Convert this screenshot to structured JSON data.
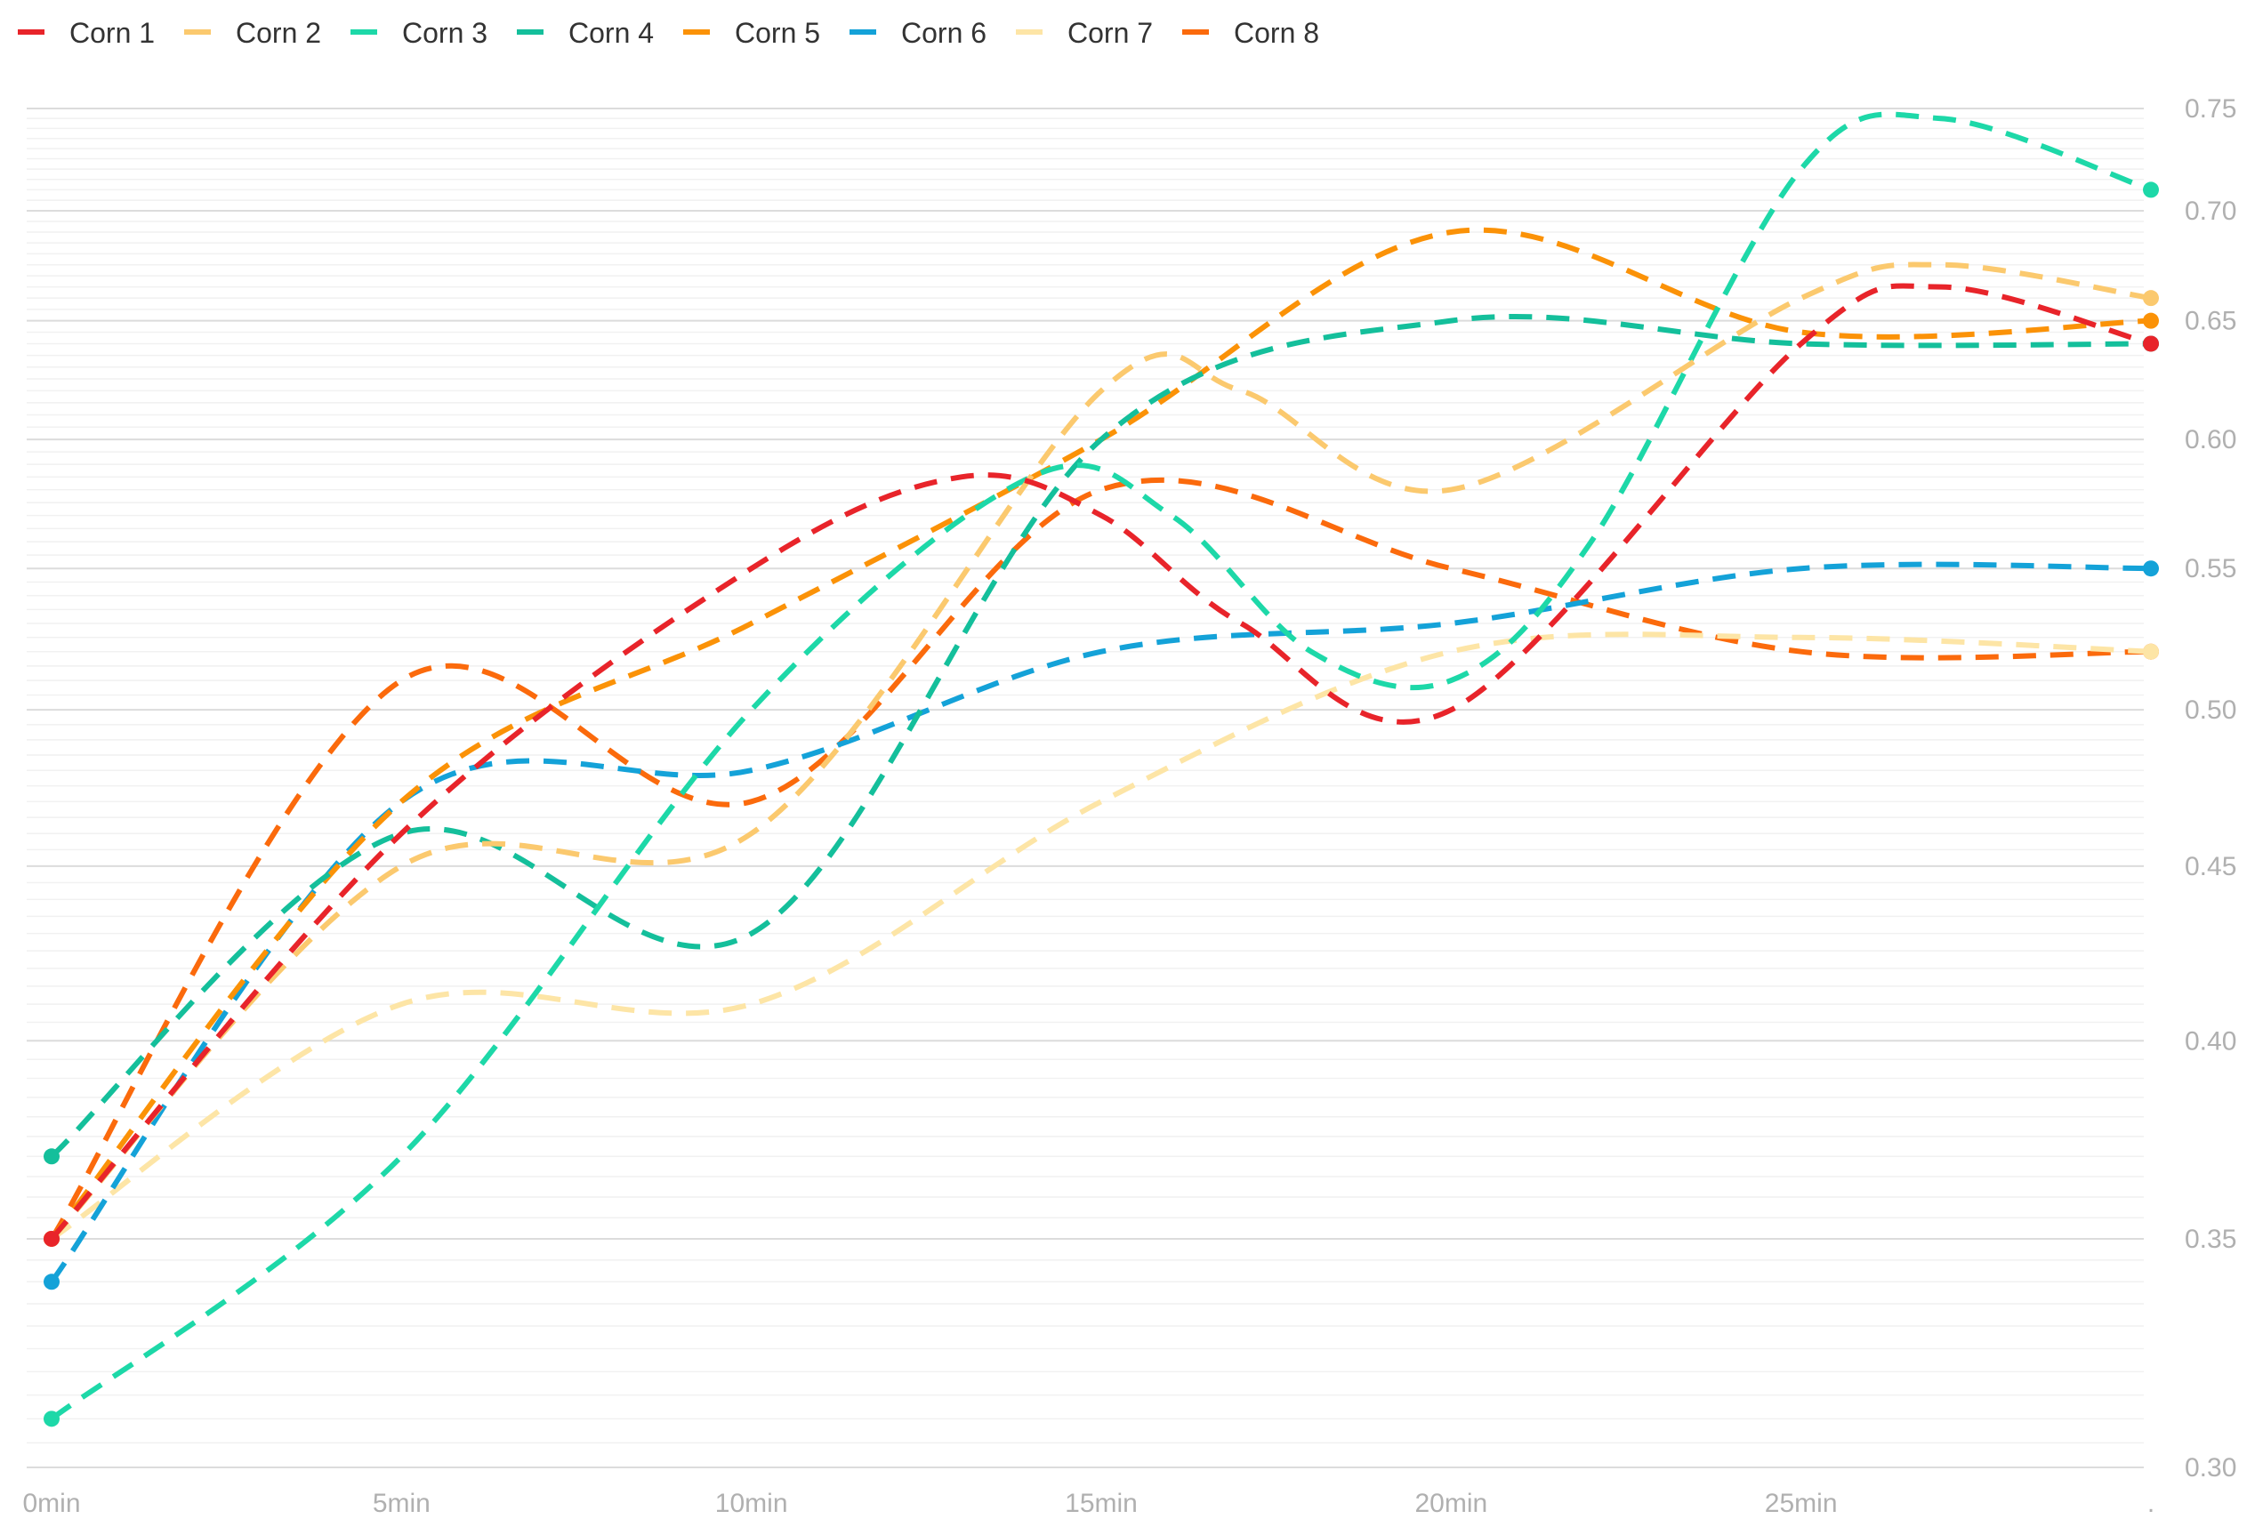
{
  "chart_data": {
    "type": "line",
    "title": "",
    "xlabel": "",
    "ylabel": "",
    "y_scale": "log",
    "ylim": [
      0.3,
      0.75
    ],
    "y_ticks": [
      0.3,
      0.35,
      0.4,
      0.45,
      0.5,
      0.55,
      0.6,
      0.65,
      0.7,
      0.75
    ],
    "y_tick_labels": [
      "0.30",
      "0.35",
      "0.40",
      "0.45",
      "0.50",
      "0.55",
      "0.60",
      "0.65",
      "0.70",
      "0.75"
    ],
    "y_axis_side": "right",
    "x_ticks": [
      0,
      5,
      10,
      15,
      20,
      25,
      30
    ],
    "x_tick_labels": [
      "0min",
      "5min",
      "10min",
      "15min",
      "20min",
      "25min",
      "."
    ],
    "legend_position": "top-left",
    "line_style": "dashed-smooth",
    "grid": true,
    "series": [
      {
        "name": "Corn 1",
        "color": "#e8242a",
        "x": [
          0,
          5,
          10,
          13,
          15,
          17,
          20,
          25,
          27,
          30
        ],
        "values": [
          0.35,
          0.46,
          0.55,
          0.585,
          0.57,
          0.53,
          0.5,
          0.64,
          0.665,
          0.64
        ]
      },
      {
        "name": "Corn 2",
        "color": "#fbc96e",
        "x": [
          0,
          5,
          10,
          15,
          17,
          20,
          25,
          27,
          30
        ],
        "values": [
          0.35,
          0.45,
          0.46,
          0.62,
          0.62,
          0.58,
          0.66,
          0.675,
          0.66
        ]
      },
      {
        "name": "Corn 3",
        "color": "#1dd8a8",
        "x": [
          0,
          5,
          10,
          14,
          16,
          18,
          20,
          22,
          25,
          27,
          30
        ],
        "values": [
          0.31,
          0.37,
          0.5,
          0.585,
          0.57,
          0.52,
          0.51,
          0.56,
          0.72,
          0.745,
          0.71
        ]
      },
      {
        "name": "Corn 4",
        "color": "#14bf9b",
        "x": [
          0,
          5,
          10,
          15,
          20,
          25,
          30
        ],
        "values": [
          0.37,
          0.46,
          0.43,
          0.6,
          0.65,
          0.64,
          0.64
        ]
      },
      {
        "name": "Corn 5",
        "color": "#fb9207",
        "x": [
          0,
          5,
          10,
          15,
          20,
          25,
          30
        ],
        "values": [
          0.35,
          0.47,
          0.53,
          0.6,
          0.69,
          0.645,
          0.65
        ]
      },
      {
        "name": "Corn 6",
        "color": "#14a2d8",
        "x": [
          0,
          5,
          10,
          15,
          20,
          25,
          30
        ],
        "values": [
          0.34,
          0.47,
          0.48,
          0.52,
          0.53,
          0.55,
          0.55
        ]
      },
      {
        "name": "Corn 7",
        "color": "#fde5a6",
        "x": [
          0,
          5,
          10,
          15,
          20,
          25,
          30
        ],
        "values": [
          0.35,
          0.41,
          0.41,
          0.47,
          0.52,
          0.525,
          0.52
        ]
      },
      {
        "name": "Corn 8",
        "color": "#fb6a0c",
        "x": [
          0,
          5,
          10,
          15,
          20,
          25,
          30
        ],
        "values": [
          0.35,
          0.51,
          0.47,
          0.58,
          0.55,
          0.52,
          0.52
        ]
      }
    ]
  }
}
